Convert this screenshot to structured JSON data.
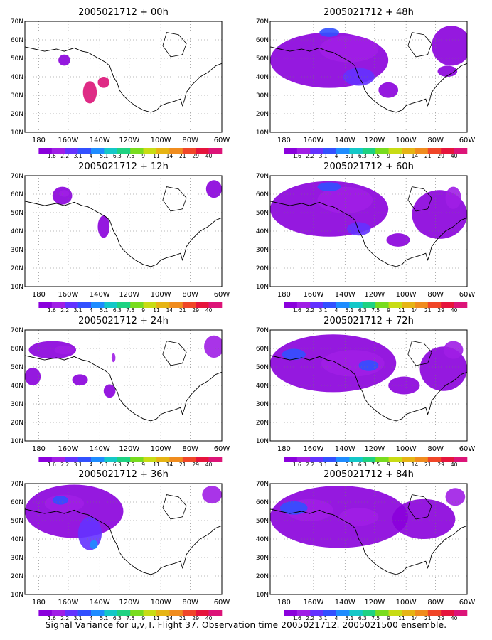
{
  "panels": [
    {
      "title": "2005021712 + 00h"
    },
    {
      "title": "2005021712 + 48h"
    },
    {
      "title": "2005021712 + 12h"
    },
    {
      "title": "2005021712 + 60h"
    },
    {
      "title": "2005021712 + 24h"
    },
    {
      "title": "2005021712 + 72h"
    },
    {
      "title": "2005021712 + 36h"
    },
    {
      "title": "2005021712 + 84h"
    }
  ],
  "lat_labels": [
    "70N",
    "60N",
    "50N",
    "40N",
    "30N",
    "20N",
    "10N"
  ],
  "lon_labels": [
    "180",
    "160W",
    "140W",
    "120W",
    "100W",
    "80W",
    "60W"
  ],
  "colorbar": {
    "labels": [
      "1.6",
      "2.2",
      "3.1",
      "4",
      "5.1",
      "6.3",
      "7.5",
      "9",
      "11",
      "14",
      "21",
      "29",
      "40"
    ],
    "colors": [
      "#8a00dc",
      "#a01ee6",
      "#6432ff",
      "#3250ff",
      "#1e8cff",
      "#14c8c8",
      "#1ed282",
      "#78dc1e",
      "#c8dc14",
      "#e6b414",
      "#f08c1e",
      "#f04628",
      "#e6143c",
      "#dc1478"
    ]
  },
  "caption": "Signal Variance for u,v,T. Flight 37. Observation time 2005021712. 2005021500 ensemble."
}
